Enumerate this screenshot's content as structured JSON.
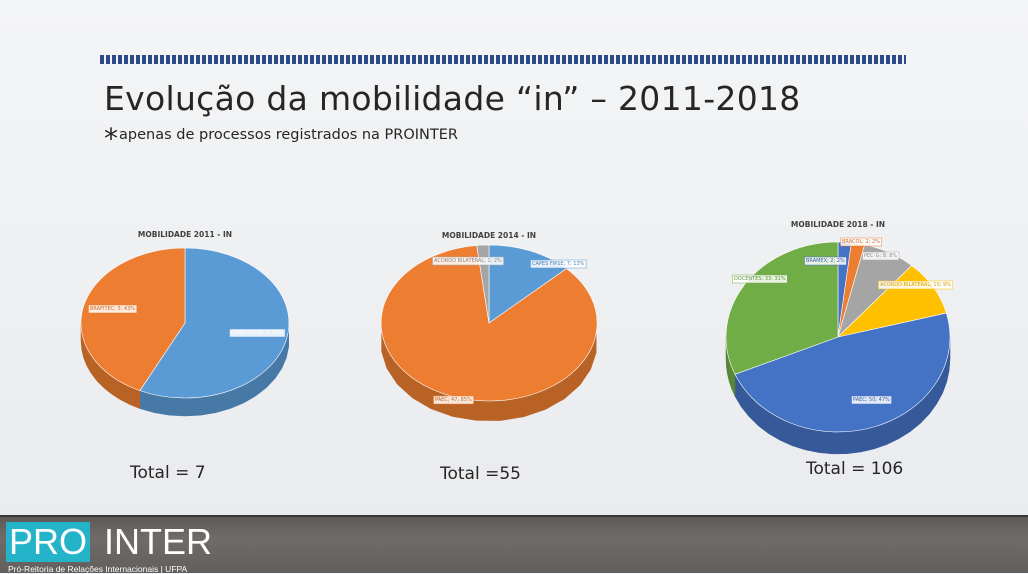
{
  "slide": {
    "title": "Evolução da mobilidade “in” – 2011-2018",
    "subtitle_marker": "*",
    "subtitle": "apenas de processos registrados na PROINTER"
  },
  "chart_data": [
    {
      "type": "pie",
      "title": "MOBILIDADE 2011 - IN",
      "slices": [
        {
          "label": "CAPES FIPSE",
          "value": 4,
          "percent": 57,
          "color": "#5b9bd5",
          "text": "CAPES FIPSE; 4; 57%"
        },
        {
          "label": "BRAFITEC",
          "value": 3,
          "percent": 43,
          "color": "#ed7d31",
          "text": "BRAFITEC; 3; 43%"
        }
      ],
      "total_label": "Total = 7"
    },
    {
      "type": "pie",
      "title": "MOBILIDADE 2014 - IN",
      "slices": [
        {
          "label": "CAPES FIPSE",
          "value": 7,
          "percent": 13,
          "color": "#5b9bd5",
          "text": "CAPES FIPSE; 7; 13%"
        },
        {
          "label": "PAEC",
          "value": 47,
          "percent": 85,
          "color": "#ed7d31",
          "text": "PAEC; 47; 85%"
        },
        {
          "label": "ACORDO BILATERAL",
          "value": 1,
          "percent": 2,
          "color": "#a5a5a5",
          "text": "ACORDO BILATERAL; 1; 2%"
        }
      ],
      "total_label": "Total =55"
    },
    {
      "type": "pie",
      "title": "MOBILIDADE 2018 - IN",
      "slices": [
        {
          "label": "BRAMEX",
          "value": 2,
          "percent": 2,
          "color": "#4472c4",
          "text": "BRAMEX; 2; 2%"
        },
        {
          "label": "BRACOL",
          "value": 2,
          "percent": 2,
          "color": "#ed7d31",
          "text": "BRACOL; 2; 2%"
        },
        {
          "label": "PEC-G",
          "value": 8,
          "percent": 8,
          "color": "#a5a5a5",
          "text": "PEC-G; 8; 8%"
        },
        {
          "label": "ACORDO BILATERAL",
          "value": 10,
          "percent": 9,
          "color": "#ffc000",
          "text": "ACORDO BILATERAL; 10; 9%"
        },
        {
          "label": "PAEC",
          "value": 50,
          "percent": 47,
          "color": "#4472c4",
          "text": "PAEC; 50; 47%"
        },
        {
          "label": "DOCENTES",
          "value": 33,
          "percent": 31,
          "color": "#70ad47",
          "text": "DOCENTES; 33; 31%"
        }
      ],
      "total_label": "Total = 106"
    }
  ],
  "footer": {
    "logo_pro": "PRO",
    "logo_inter": "INTER",
    "tagline": "Pró-Reitoria de Relações Internacionais | UFPA",
    "accent_color": "#24b3c9"
  }
}
